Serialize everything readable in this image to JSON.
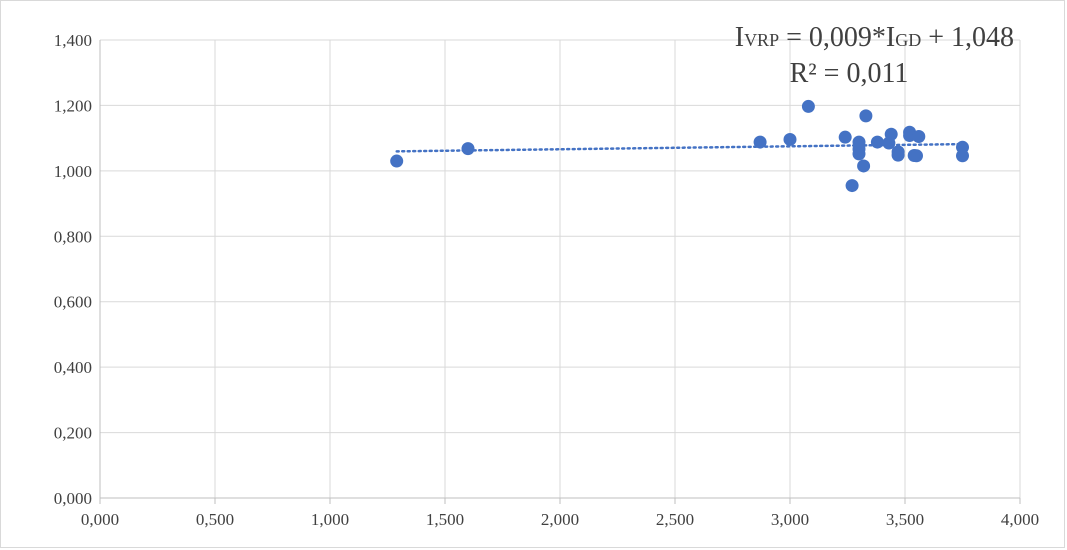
{
  "chart_data": {
    "type": "scatter",
    "title": "",
    "xlabel": "",
    "ylabel": "",
    "xlim": [
      0,
      4
    ],
    "ylim": [
      0,
      1.4
    ],
    "x_ticks": [
      0,
      0.5,
      1,
      1.5,
      2,
      2.5,
      3,
      3.5,
      4
    ],
    "y_ticks": [
      0,
      0.2,
      0.4,
      0.6,
      0.8,
      1.0,
      1.2,
      1.4
    ],
    "x_tick_labels": [
      "0,000",
      "0,500",
      "1,000",
      "1,500",
      "2,000",
      "2,500",
      "3,000",
      "3,500",
      "4,000"
    ],
    "y_tick_labels": [
      "0,000",
      "0,200",
      "0,400",
      "0,600",
      "0,800",
      "1,000",
      "1,200",
      "1,400"
    ],
    "grid": "vertical and horizontal",
    "legend": "none",
    "series": [
      {
        "points": [
          {
            "x": 1.29,
            "y": 1.03
          },
          {
            "x": 1.6,
            "y": 1.068
          },
          {
            "x": 2.87,
            "y": 1.088
          },
          {
            "x": 3.0,
            "y": 1.096
          },
          {
            "x": 3.08,
            "y": 1.197
          },
          {
            "x": 3.24,
            "y": 1.103
          },
          {
            "x": 3.27,
            "y": 0.955
          },
          {
            "x": 3.3,
            "y": 1.088
          },
          {
            "x": 3.3,
            "y": 1.067
          },
          {
            "x": 3.3,
            "y": 1.052
          },
          {
            "x": 3.32,
            "y": 1.015
          },
          {
            "x": 3.33,
            "y": 1.168
          },
          {
            "x": 3.38,
            "y": 1.088
          },
          {
            "x": 3.43,
            "y": 1.085
          },
          {
            "x": 3.44,
            "y": 1.112
          },
          {
            "x": 3.47,
            "y": 1.058
          },
          {
            "x": 3.47,
            "y": 1.048
          },
          {
            "x": 3.52,
            "y": 1.118
          },
          {
            "x": 3.52,
            "y": 1.108
          },
          {
            "x": 3.54,
            "y": 1.047
          },
          {
            "x": 3.55,
            "y": 1.046
          },
          {
            "x": 3.56,
            "y": 1.105
          },
          {
            "x": 3.75,
            "y": 1.072
          },
          {
            "x": 3.75,
            "y": 1.046
          }
        ]
      }
    ],
    "trendline": {
      "type": "linear",
      "slope": 0.009,
      "intercept": 1.048,
      "x_range": [
        1.29,
        3.75
      ],
      "equation_main": "I",
      "equation_sub1": "VRP",
      "equation_mid": " = 0,009*I",
      "equation_sub2": "GD",
      "equation_end": " + 1,048",
      "r2_label": "R² = 0,011"
    },
    "colors": {
      "marker": "#4472C4",
      "trendline": "#4472C4",
      "grid": "#d9d9d9",
      "axis": "#bfbfbf",
      "text": "#404040"
    }
  }
}
